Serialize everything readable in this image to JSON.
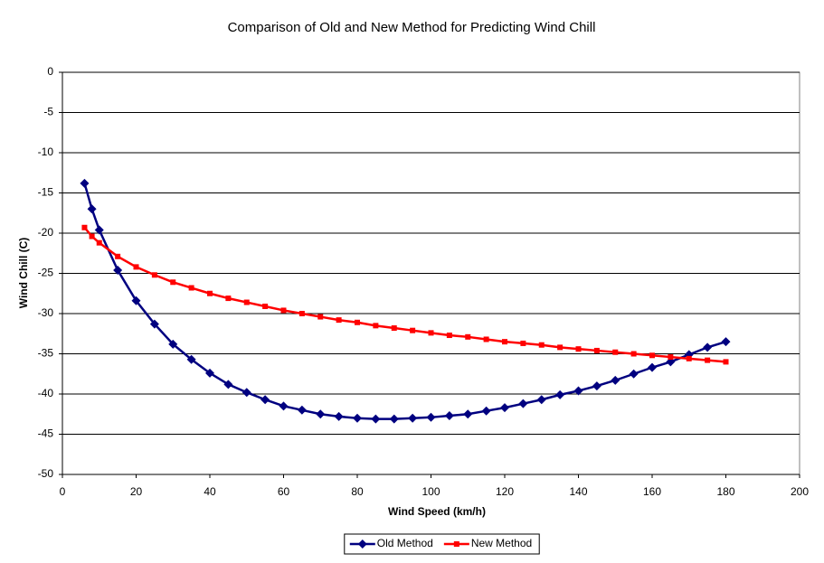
{
  "chart_data": {
    "type": "line",
    "title": "Comparison of Old and New Method for Predicting Wind Chill",
    "x_label": "Wind Speed (km/h)",
    "y_label": "Wind Chill (C)",
    "x": [
      6,
      8,
      10,
      15,
      20,
      25,
      30,
      35,
      40,
      45,
      50,
      55,
      60,
      65,
      70,
      75,
      80,
      85,
      90,
      95,
      100,
      105,
      110,
      115,
      120,
      125,
      130,
      135,
      140,
      145,
      150,
      155,
      160,
      165,
      170,
      175,
      180
    ],
    "series": [
      {
        "name": "Old Method",
        "color": "#000080",
        "marker": "diamond",
        "values": [
          -13.8,
          -17.0,
          -19.6,
          -24.6,
          -28.4,
          -31.3,
          -33.8,
          -35.7,
          -37.4,
          -38.8,
          -39.8,
          -40.7,
          -41.5,
          -42.0,
          -42.5,
          -42.8,
          -43.0,
          -43.1,
          -43.1,
          -43.0,
          -42.9,
          -42.7,
          -42.5,
          -42.1,
          -41.7,
          -41.2,
          -40.7,
          -40.1,
          -39.6,
          -39.0,
          -38.3,
          -37.5,
          -36.7,
          -36.0,
          -35.1,
          -34.2,
          -33.5
        ]
      },
      {
        "name": "New Method",
        "color": "#ff0000",
        "marker": "square",
        "values": [
          -19.3,
          -20.4,
          -21.2,
          -22.9,
          -24.2,
          -25.2,
          -26.1,
          -26.8,
          -27.5,
          -28.1,
          -28.6,
          -29.1,
          -29.6,
          -30.0,
          -30.4,
          -30.8,
          -31.1,
          -31.5,
          -31.8,
          -32.1,
          -32.4,
          -32.7,
          -32.9,
          -33.2,
          -33.5,
          -33.7,
          -33.9,
          -34.2,
          -34.4,
          -34.6,
          -34.8,
          -35.0,
          -35.2,
          -35.4,
          -35.6,
          -35.8,
          -36.0
        ]
      }
    ],
    "xlim": [
      0,
      200
    ],
    "xticks": [
      0,
      20,
      40,
      60,
      80,
      100,
      120,
      140,
      160,
      180,
      200
    ],
    "ylim": [
      -50,
      0
    ],
    "yticks": [
      -50,
      -45,
      -40,
      -35,
      -30,
      -25,
      -20,
      -15,
      -10,
      -5,
      0
    ],
    "grid": true,
    "legend": "bottom"
  }
}
